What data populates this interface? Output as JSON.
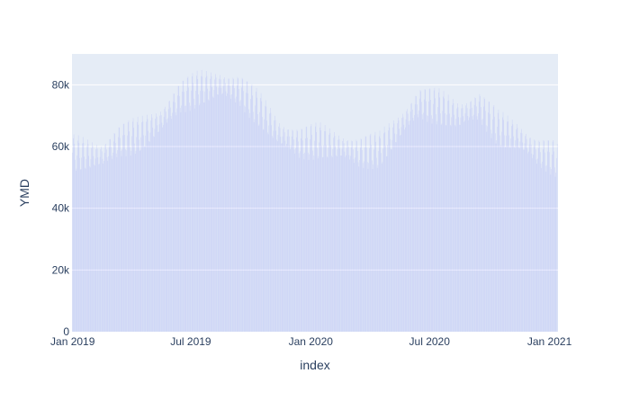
{
  "chart_data": {
    "type": "bar",
    "title": "",
    "xlabel": "index",
    "ylabel": "YMD",
    "ylim": [
      0,
      90000
    ],
    "xlim": [
      "2018-12-31",
      "2021-01-14"
    ],
    "grid": true,
    "legend": "none",
    "bar_color": "#636efa",
    "bar_opacity": 0.2,
    "plot_background": "#e5ecf6",
    "grid_color": "#ffffff",
    "x_tick_labels": [
      "Jan 2019",
      "Jul 2019",
      "Jan 2020",
      "Jul 2020",
      "Jan 2021"
    ],
    "x_tick_dates": [
      "2019-01-01",
      "2019-07-01",
      "2020-01-01",
      "2020-07-01",
      "2021-01-01"
    ],
    "y_tick_labels": [
      "0",
      "20k",
      "40k",
      "60k",
      "80k"
    ],
    "y_tick_values": [
      0,
      20000,
      40000,
      60000,
      80000
    ],
    "start_date": "2019-01-01",
    "end_date": "2021-01-13",
    "trend": [
      {
        "date": "2019-01-01",
        "value": 58000
      },
      {
        "date": "2019-02-15",
        "value": 57000
      },
      {
        "date": "2019-03-15",
        "value": 62000
      },
      {
        "date": "2019-04-15",
        "value": 64000
      },
      {
        "date": "2019-05-15",
        "value": 68000
      },
      {
        "date": "2019-06-15",
        "value": 76000
      },
      {
        "date": "2019-07-15",
        "value": 79000
      },
      {
        "date": "2019-08-15",
        "value": 80000
      },
      {
        "date": "2019-09-15",
        "value": 78000
      },
      {
        "date": "2019-10-15",
        "value": 72000
      },
      {
        "date": "2019-11-15",
        "value": 64000
      },
      {
        "date": "2019-12-15",
        "value": 61000
      },
      {
        "date": "2020-01-15",
        "value": 62000
      },
      {
        "date": "2020-02-15",
        "value": 60000
      },
      {
        "date": "2020-03-15",
        "value": 58000
      },
      {
        "date": "2020-04-15",
        "value": 59000
      },
      {
        "date": "2020-05-15",
        "value": 66000
      },
      {
        "date": "2020-06-15",
        "value": 74000
      },
      {
        "date": "2020-07-15",
        "value": 73000
      },
      {
        "date": "2020-08-15",
        "value": 70000
      },
      {
        "date": "2020-09-15",
        "value": 73000
      },
      {
        "date": "2020-10-15",
        "value": 66000
      },
      {
        "date": "2020-11-15",
        "value": 63000
      },
      {
        "date": "2020-12-15",
        "value": 58000
      },
      {
        "date": "2021-01-13",
        "value": 56000
      }
    ],
    "weekly_amplitude": 4500
  }
}
